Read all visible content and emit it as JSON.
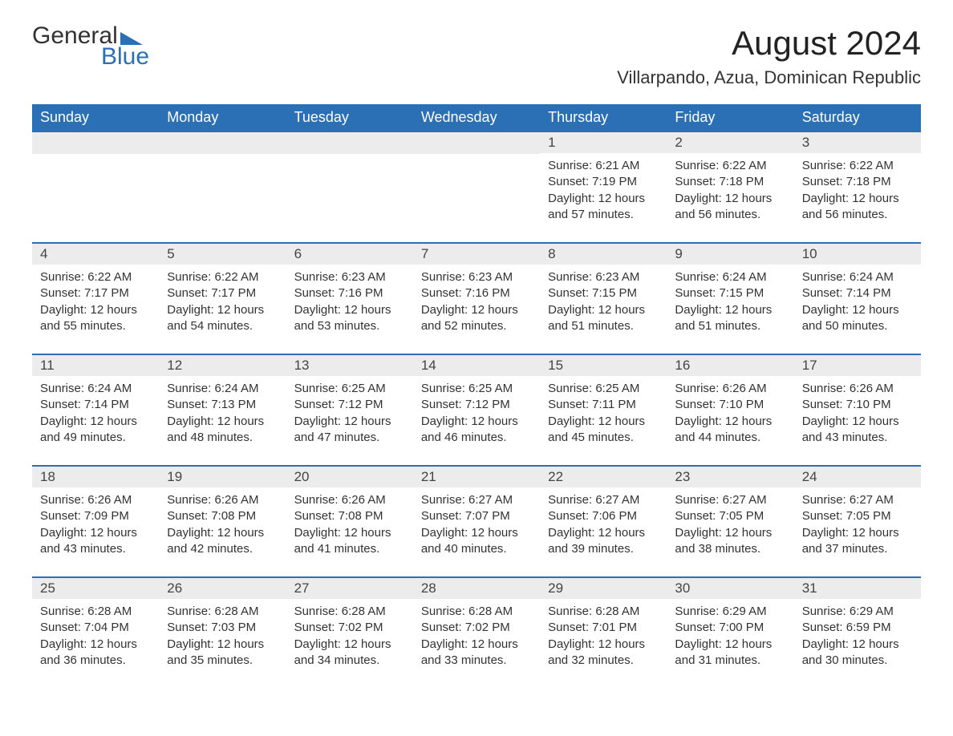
{
  "logo": {
    "word1": "General",
    "word2": "Blue"
  },
  "title": "August 2024",
  "location": "Villarpando, Azua, Dominican Republic",
  "colors": {
    "accent": "#2b6fb5",
    "row_header_bg": "#ececec",
    "text": "#333333",
    "background": "#ffffff"
  },
  "labels": {
    "sunrise": "Sunrise: ",
    "sunset": "Sunset: ",
    "daylight_prefix": "Daylight: ",
    "daylight_join": " hours and ",
    "daylight_suffix": " minutes."
  },
  "weekdays": [
    "Sunday",
    "Monday",
    "Tuesday",
    "Wednesday",
    "Thursday",
    "Friday",
    "Saturday"
  ],
  "weeks": [
    [
      null,
      null,
      null,
      null,
      {
        "d": "1",
        "rise": "6:21 AM",
        "set": "7:19 PM",
        "h": 12,
        "m": 57
      },
      {
        "d": "2",
        "rise": "6:22 AM",
        "set": "7:18 PM",
        "h": 12,
        "m": 56
      },
      {
        "d": "3",
        "rise": "6:22 AM",
        "set": "7:18 PM",
        "h": 12,
        "m": 56
      }
    ],
    [
      {
        "d": "4",
        "rise": "6:22 AM",
        "set": "7:17 PM",
        "h": 12,
        "m": 55
      },
      {
        "d": "5",
        "rise": "6:22 AM",
        "set": "7:17 PM",
        "h": 12,
        "m": 54
      },
      {
        "d": "6",
        "rise": "6:23 AM",
        "set": "7:16 PM",
        "h": 12,
        "m": 53
      },
      {
        "d": "7",
        "rise": "6:23 AM",
        "set": "7:16 PM",
        "h": 12,
        "m": 52
      },
      {
        "d": "8",
        "rise": "6:23 AM",
        "set": "7:15 PM",
        "h": 12,
        "m": 51
      },
      {
        "d": "9",
        "rise": "6:24 AM",
        "set": "7:15 PM",
        "h": 12,
        "m": 51
      },
      {
        "d": "10",
        "rise": "6:24 AM",
        "set": "7:14 PM",
        "h": 12,
        "m": 50
      }
    ],
    [
      {
        "d": "11",
        "rise": "6:24 AM",
        "set": "7:14 PM",
        "h": 12,
        "m": 49
      },
      {
        "d": "12",
        "rise": "6:24 AM",
        "set": "7:13 PM",
        "h": 12,
        "m": 48
      },
      {
        "d": "13",
        "rise": "6:25 AM",
        "set": "7:12 PM",
        "h": 12,
        "m": 47
      },
      {
        "d": "14",
        "rise": "6:25 AM",
        "set": "7:12 PM",
        "h": 12,
        "m": 46
      },
      {
        "d": "15",
        "rise": "6:25 AM",
        "set": "7:11 PM",
        "h": 12,
        "m": 45
      },
      {
        "d": "16",
        "rise": "6:26 AM",
        "set": "7:10 PM",
        "h": 12,
        "m": 44
      },
      {
        "d": "17",
        "rise": "6:26 AM",
        "set": "7:10 PM",
        "h": 12,
        "m": 43
      }
    ],
    [
      {
        "d": "18",
        "rise": "6:26 AM",
        "set": "7:09 PM",
        "h": 12,
        "m": 43
      },
      {
        "d": "19",
        "rise": "6:26 AM",
        "set": "7:08 PM",
        "h": 12,
        "m": 42
      },
      {
        "d": "20",
        "rise": "6:26 AM",
        "set": "7:08 PM",
        "h": 12,
        "m": 41
      },
      {
        "d": "21",
        "rise": "6:27 AM",
        "set": "7:07 PM",
        "h": 12,
        "m": 40
      },
      {
        "d": "22",
        "rise": "6:27 AM",
        "set": "7:06 PM",
        "h": 12,
        "m": 39
      },
      {
        "d": "23",
        "rise": "6:27 AM",
        "set": "7:05 PM",
        "h": 12,
        "m": 38
      },
      {
        "d": "24",
        "rise": "6:27 AM",
        "set": "7:05 PM",
        "h": 12,
        "m": 37
      }
    ],
    [
      {
        "d": "25",
        "rise": "6:28 AM",
        "set": "7:04 PM",
        "h": 12,
        "m": 36
      },
      {
        "d": "26",
        "rise": "6:28 AM",
        "set": "7:03 PM",
        "h": 12,
        "m": 35
      },
      {
        "d": "27",
        "rise": "6:28 AM",
        "set": "7:02 PM",
        "h": 12,
        "m": 34
      },
      {
        "d": "28",
        "rise": "6:28 AM",
        "set": "7:02 PM",
        "h": 12,
        "m": 33
      },
      {
        "d": "29",
        "rise": "6:28 AM",
        "set": "7:01 PM",
        "h": 12,
        "m": 32
      },
      {
        "d": "30",
        "rise": "6:29 AM",
        "set": "7:00 PM",
        "h": 12,
        "m": 31
      },
      {
        "d": "31",
        "rise": "6:29 AM",
        "set": "6:59 PM",
        "h": 12,
        "m": 30
      }
    ]
  ]
}
